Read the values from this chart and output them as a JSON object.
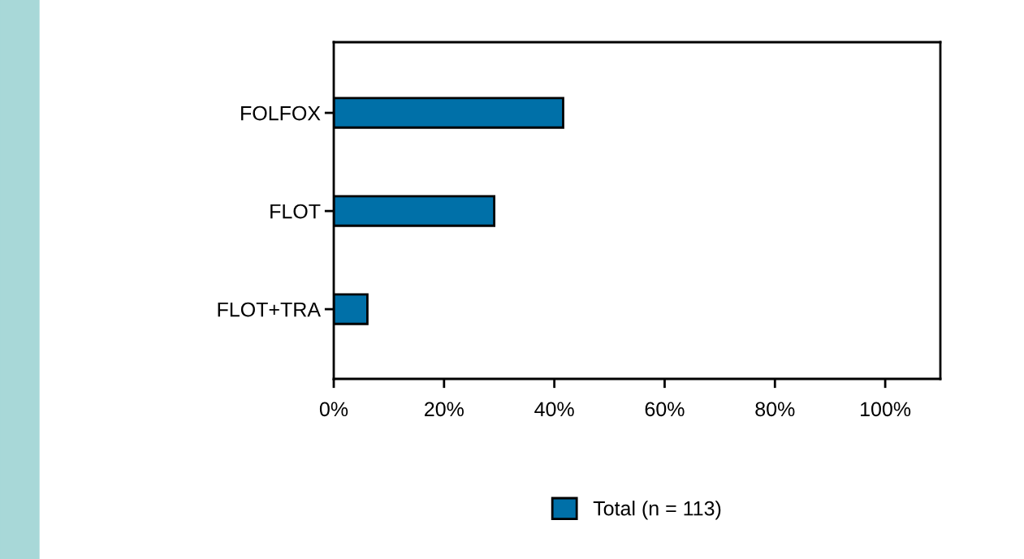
{
  "chart_data": {
    "type": "bar",
    "orientation": "horizontal",
    "categories": [
      "FOLFOX",
      "FLOT",
      "FLOT+TRA"
    ],
    "series": [
      {
        "name": "Total (n = 113)",
        "color": "#0070a8",
        "values": [
          41.6,
          29.1,
          6.1
        ]
      }
    ],
    "xlim": [
      0,
      110
    ],
    "xticks": [
      {
        "value": 0,
        "label": "0%"
      },
      {
        "value": 20,
        "label": "20%"
      },
      {
        "value": 40,
        "label": "40%"
      },
      {
        "value": 60,
        "label": "60%"
      },
      {
        "value": 80,
        "label": "80%"
      },
      {
        "value": 100,
        "label": "100%"
      }
    ],
    "grid": false,
    "legend": "bottom"
  }
}
